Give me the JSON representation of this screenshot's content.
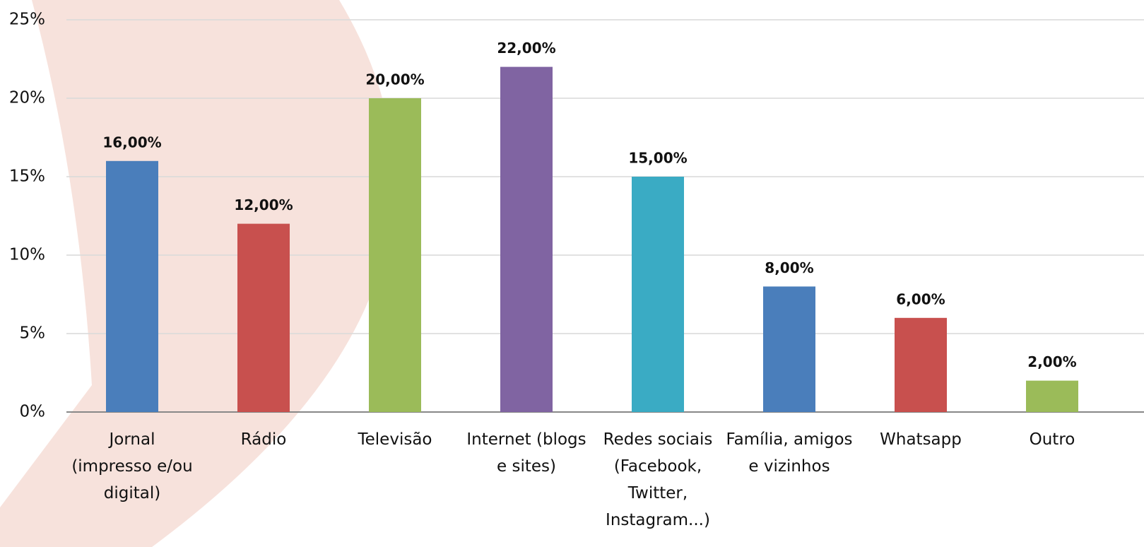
{
  "chart_data": {
    "type": "bar",
    "categories": [
      "Jornal (impresso e/ou digital)",
      "Rádio",
      "Televisão",
      "Internet (blogs e sites)",
      "Redes sociais (Facebook, Twitter, Instagram...)",
      "Família, amigos e vizinhos",
      "Whatsapp",
      "Outro"
    ],
    "values": [
      16,
      12,
      20,
      22,
      15,
      8,
      6,
      2
    ],
    "value_labels": [
      "16,00%",
      "12,00%",
      "20,00%",
      "22,00%",
      "15,00%",
      "8,00%",
      "6,00%",
      "2,00%"
    ],
    "colors": [
      "#4a7ebb",
      "#c8504e",
      "#9bbb59",
      "#8064a2",
      "#3aabc4",
      "#4a7ebb",
      "#c8504e",
      "#9bbb59"
    ],
    "ylim": [
      0,
      25
    ],
    "yticks": [
      {
        "value": 0,
        "label": "0%"
      },
      {
        "value": 5,
        "label": "5%"
      },
      {
        "value": 10,
        "label": "10%"
      },
      {
        "value": 15,
        "label": "15%"
      },
      {
        "value": 20,
        "label": "20%"
      },
      {
        "value": 25,
        "label": "25%"
      }
    ],
    "grid": true
  }
}
